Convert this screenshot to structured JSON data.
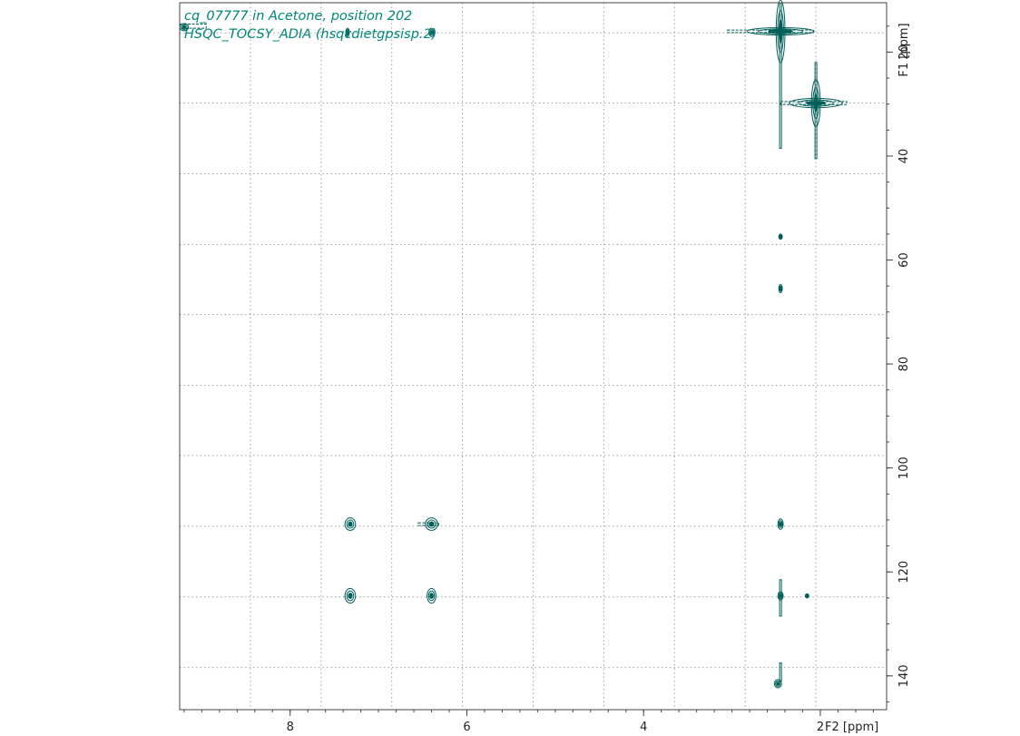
{
  "chart_data": {
    "type": "heatmap",
    "subtype": "2D NMR contour plot",
    "title_lines": [
      "cq_07777 in Acetone, position 202",
      "HSQC_TOCSY_ADIA (hsqcdietgpsisp.2)"
    ],
    "x_axis": {
      "label": "F2 [ppm]",
      "range": [
        9.25,
        1.25
      ],
      "reversed": true,
      "ticks": [
        8,
        6,
        4,
        2
      ],
      "tick_labels": [
        "8",
        "6",
        "4",
        "2"
      ],
      "minor_step": 0.2
    },
    "y_axis": {
      "label": "F1 [ppm]",
      "position": "right",
      "range": [
        10.5,
        146.5
      ],
      "reversed": true,
      "ticks": [
        20,
        40,
        60,
        80,
        100,
        120,
        140
      ],
      "tick_labels": [
        "20",
        "40",
        "60",
        "80",
        "100",
        "120",
        "140"
      ],
      "minor_step": 5
    },
    "grid": true,
    "grid_x": [
      9.25,
      8.45,
      7.65,
      6.85,
      6.05,
      5.25,
      4.45,
      3.65,
      2.85,
      2.05
    ],
    "grid_y": [
      16.3,
      29.8,
      43.4,
      57.0,
      70.5,
      84.1,
      97.6,
      111.2,
      124.8,
      138.4
    ],
    "colors": {
      "contour": "#005f5a",
      "grid": "#a0a0a0",
      "title": "#008878",
      "frame": "#444444"
    },
    "peaks": [
      {
        "x": 2.45,
        "y": 16.0,
        "w": 0.38,
        "h": 0.7
      },
      {
        "x": 2.45,
        "y": 16.0,
        "w": 0.05,
        "h": 6.0
      },
      {
        "x": 2.05,
        "y": 29.8,
        "w": 0.3,
        "h": 0.9
      },
      {
        "x": 2.05,
        "y": 29.8,
        "w": 0.05,
        "h": 4.5
      },
      {
        "x": 9.2,
        "y": 15.2,
        "w": 0.05,
        "h": 0.7
      },
      {
        "x": 7.35,
        "y": 16.2,
        "w": 0.02,
        "h": 0.8
      },
      {
        "x": 6.4,
        "y": 16.2,
        "w": 0.03,
        "h": 0.8
      },
      {
        "x": 2.45,
        "y": 55.5,
        "w": 0.02,
        "h": 0.5
      },
      {
        "x": 2.45,
        "y": 65.5,
        "w": 0.02,
        "h": 0.8
      },
      {
        "x": 7.32,
        "y": 110.8,
        "w": 0.06,
        "h": 1.2
      },
      {
        "x": 6.4,
        "y": 110.8,
        "w": 0.07,
        "h": 1.2
      },
      {
        "x": 2.45,
        "y": 110.8,
        "w": 0.03,
        "h": 1.0
      },
      {
        "x": 7.32,
        "y": 124.6,
        "w": 0.06,
        "h": 1.4
      },
      {
        "x": 6.4,
        "y": 124.6,
        "w": 0.05,
        "h": 1.4
      },
      {
        "x": 2.45,
        "y": 124.6,
        "w": 0.03,
        "h": 0.8
      },
      {
        "x": 2.15,
        "y": 124.6,
        "w": 0.02,
        "h": 0.4
      },
      {
        "x": 2.48,
        "y": 141.5,
        "w": 0.04,
        "h": 0.8
      }
    ],
    "ridges": [
      {
        "x": 2.45,
        "y1": 10.5,
        "y2": 38.5,
        "dx": 0.01
      },
      {
        "x": 2.05,
        "y1": 22.0,
        "y2": 40.5,
        "dx": 0.01
      },
      {
        "x": 2.45,
        "y1": 121.5,
        "y2": 128.5,
        "dx": 0.008
      },
      {
        "x": 2.45,
        "y1": 137.5,
        "y2": 141.0,
        "dx": 0.006
      }
    ],
    "streaks": [
      {
        "y": 16.0,
        "x1": 3.05,
        "x2": 2.08,
        "dx": 0.01,
        "dy": 0.25
      },
      {
        "y": 29.8,
        "x1": 2.45,
        "x2": 1.7,
        "dx": 0.01,
        "dy": 0.3
      },
      {
        "y": 15.0,
        "x1": 9.25,
        "x2": 8.95,
        "dx": 0.01,
        "dy": 0.4
      },
      {
        "y": 110.8,
        "x1": 6.55,
        "x2": 6.32,
        "dx": 0.01,
        "dy": 0.25
      }
    ]
  }
}
